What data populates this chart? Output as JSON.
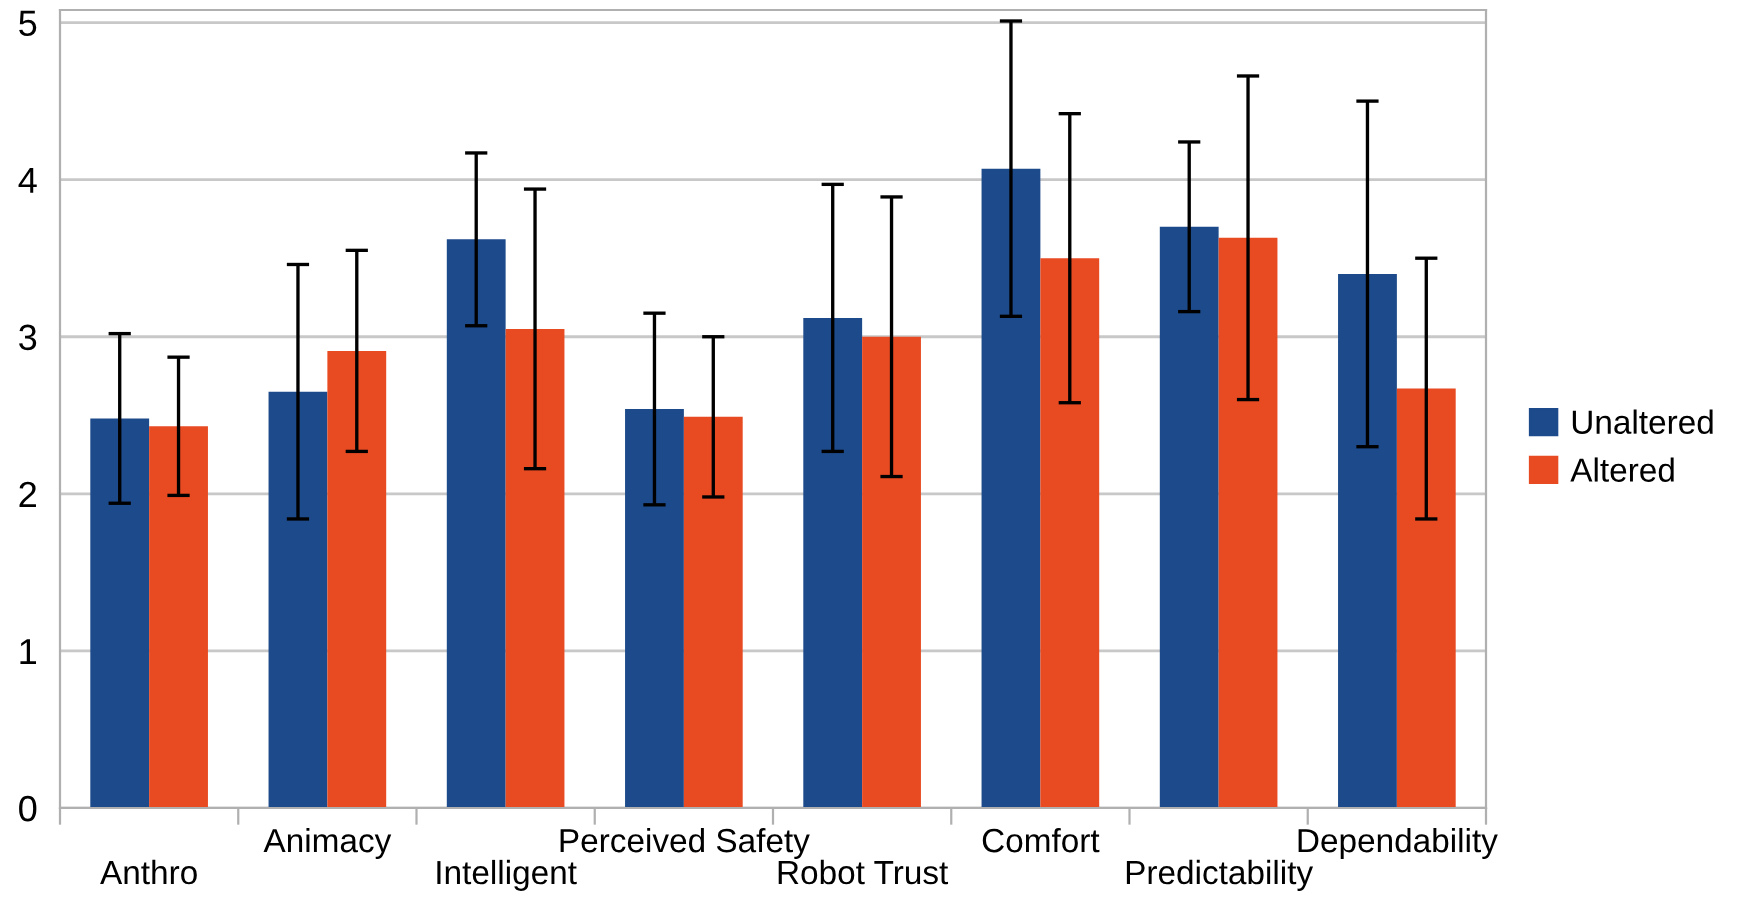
{
  "chart_data": {
    "type": "bar",
    "categories": [
      "Anthro",
      "Animacy",
      "Intelligent",
      "Perceived Safety",
      "Robot Trust",
      "Comfort",
      "Predictability",
      "Dependability"
    ],
    "series": [
      {
        "name": "Unaltered",
        "color": "#1c4a8a",
        "values": [
          2.48,
          2.65,
          3.62,
          2.54,
          3.12,
          4.07,
          3.7,
          3.4
        ],
        "errors": [
          0.54,
          0.81,
          0.55,
          0.61,
          0.85,
          0.94,
          0.54,
          1.1
        ]
      },
      {
        "name": "Altered",
        "color": "#e84a22",
        "values": [
          2.43,
          2.91,
          3.05,
          2.49,
          3.0,
          3.5,
          3.63,
          2.67
        ],
        "errors": [
          0.44,
          0.64,
          0.89,
          0.51,
          0.89,
          0.92,
          1.03,
          0.83
        ]
      }
    ],
    "ylim": [
      0,
      5.08
    ],
    "yticks": [
      0,
      1,
      2,
      3,
      4,
      5
    ],
    "grid": "y",
    "legend": "right"
  }
}
